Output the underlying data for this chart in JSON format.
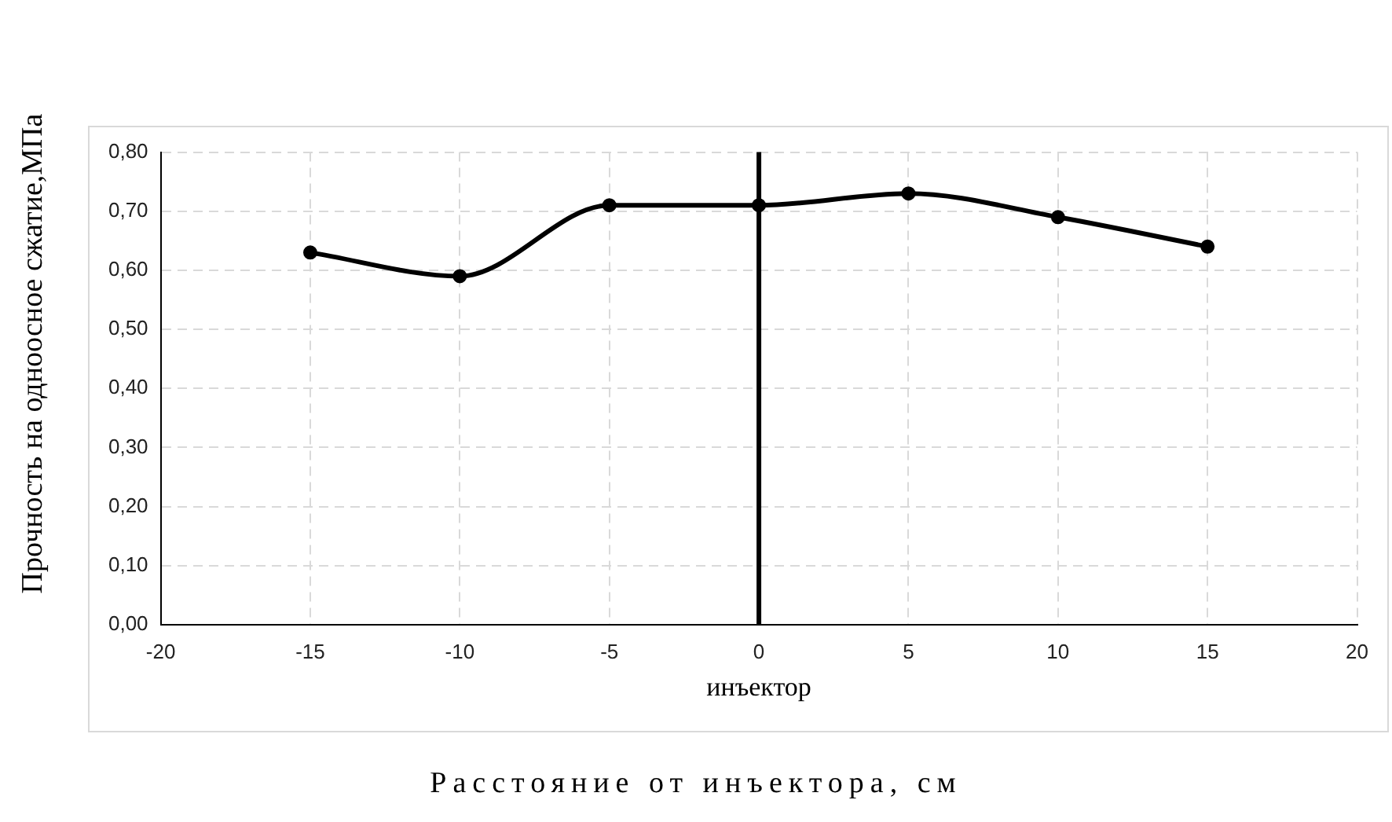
{
  "chart_data": {
    "type": "line",
    "xlabel": "Расстояние от инъектора, см",
    "ylabel": "Прочность на одноосное сжатие,МПа",
    "x": [
      -15,
      -10,
      -5,
      0,
      5,
      10,
      15
    ],
    "series": [
      {
        "color": "#000000",
        "values": [
          0.63,
          0.59,
          0.71,
          0.71,
          0.73,
          0.69,
          0.64
        ]
      }
    ],
    "xlim": [
      -20,
      20
    ],
    "xticks": [
      -20,
      -15,
      -10,
      -5,
      0,
      5,
      10,
      15,
      20
    ],
    "ylim": [
      0,
      0.8
    ],
    "yticks": [
      {
        "value": 0,
        "label": "0,00"
      },
      {
        "value": 0.1,
        "label": "0,10"
      },
      {
        "value": 0.2,
        "label": "0,20"
      },
      {
        "value": 0.3,
        "label": "0,30"
      },
      {
        "value": 0.4,
        "label": "0,40"
      },
      {
        "value": 0.5,
        "label": "0,50"
      },
      {
        "value": 0.6,
        "label": "0,60"
      },
      {
        "value": 0.7,
        "label": "0,70"
      },
      {
        "value": 0.8,
        "label": "0,80"
      }
    ],
    "ref_lines": [
      {
        "axis": "x",
        "value": 0,
        "label": "инъектор",
        "color": "#000000"
      }
    ],
    "grid": true,
    "legend": false,
    "marker": "circle",
    "line_style": "solid"
  }
}
